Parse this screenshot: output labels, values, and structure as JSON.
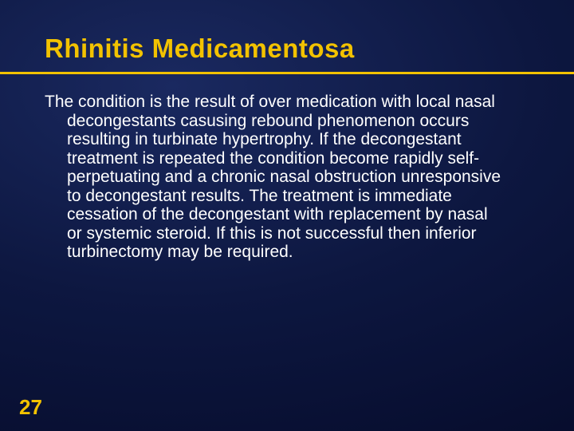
{
  "title": {
    "text": "Rhinitis Medicamentosa",
    "color": "#f2c200",
    "fontsize": 33
  },
  "underline": {
    "color": "#f2c200"
  },
  "body": {
    "text": "The condition is the result of over medication with local nasal decongestants casusing rebound phenomenon occurs resulting in turbinate hypertrophy. If the decongestant treatment is repeated the condition become rapidly self-perpetuating and a chronic nasal obstruction unresponsive to decongestant results. The treatment is immediate cessation of the decongestant with replacement by nasal or systemic steroid. If this is not successful then inferior turbinectomy may be required.",
    "color": "#ffffff",
    "fontsize": 21,
    "lineheight": 1.12
  },
  "pagenum": {
    "text": "27",
    "color": "#f2c200",
    "fontsize": 26
  },
  "background": {
    "base": "#0a1238"
  }
}
